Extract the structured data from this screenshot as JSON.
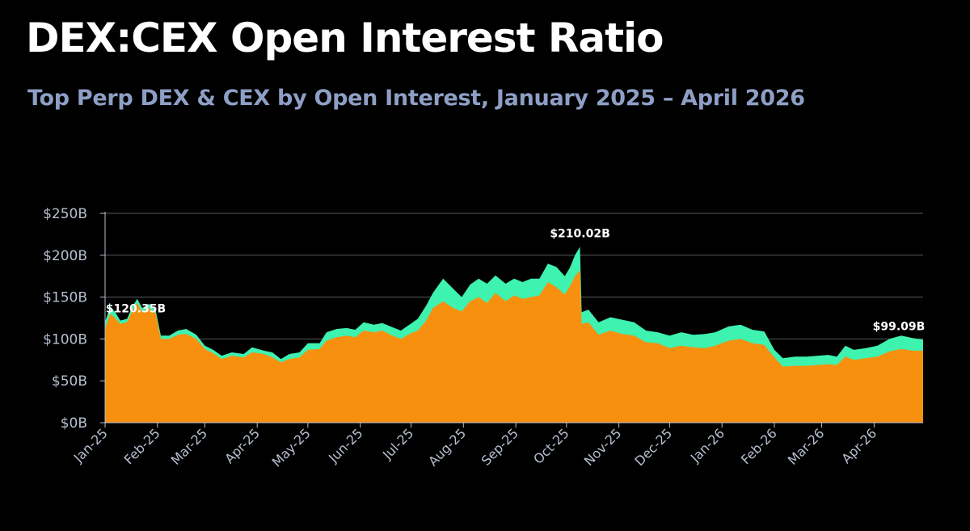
{
  "title": "DEX:CEX Open Interest Ratio",
  "subtitle": "Top Perp DEX & CEX by Open Interest, January 2025 – April 2026",
  "chart_data": {
    "type": "area",
    "stacked": true,
    "ylim": [
      0,
      250
    ],
    "y_ticks": [
      0,
      50,
      100,
      150,
      200,
      250
    ],
    "y_tick_labels": [
      "$0B",
      "$50B",
      "$100B",
      "$150B",
      "$200B",
      "$250B"
    ],
    "x_tick_labels": [
      "Jan-25",
      "Feb-25",
      "Mar-25",
      "Apr-25",
      "May-25",
      "Jun-25",
      "Jul-25",
      "Aug-25",
      "Sep-25",
      "Oct-25",
      "Nov-25",
      "Dec-25",
      "Jan-26",
      "Feb-26",
      "Mar-26",
      "Apr-26"
    ],
    "grid": "horizontal",
    "colors": {
      "bottom_series": "#f7900f",
      "top_series": "#3ef2b0",
      "gridline": "#55585e",
      "axis": "#b7bfd0"
    },
    "x_end": "2026-04-30",
    "series": [
      {
        "points": [
          [
            "2025-01-01",
            112
          ],
          [
            "2025-01-04",
            130
          ],
          [
            "2025-01-07",
            125
          ],
          [
            "2025-01-10",
            118
          ],
          [
            "2025-01-14",
            120
          ],
          [
            "2025-01-17",
            133
          ],
          [
            "2025-01-20",
            143
          ],
          [
            "2025-01-23",
            132
          ],
          [
            "2025-01-27",
            137
          ],
          [
            "2025-01-31",
            130
          ],
          [
            "2025-02-03",
            100
          ],
          [
            "2025-02-08",
            100
          ],
          [
            "2025-02-13",
            105
          ],
          [
            "2025-02-18",
            106
          ],
          [
            "2025-02-24",
            100
          ],
          [
            "2025-03-01",
            88
          ],
          [
            "2025-03-06",
            83
          ],
          [
            "2025-03-11",
            76
          ],
          [
            "2025-03-17",
            80
          ],
          [
            "2025-03-24",
            78
          ],
          [
            "2025-03-29",
            84
          ],
          [
            "2025-04-05",
            82
          ],
          [
            "2025-04-10",
            78
          ],
          [
            "2025-04-15",
            72
          ],
          [
            "2025-04-20",
            76
          ],
          [
            "2025-04-26",
            78
          ],
          [
            "2025-05-01",
            87
          ],
          [
            "2025-05-08",
            88
          ],
          [
            "2025-05-12",
            98
          ],
          [
            "2025-05-18",
            102
          ],
          [
            "2025-05-24",
            104
          ],
          [
            "2025-05-29",
            102
          ],
          [
            "2025-06-03",
            110
          ],
          [
            "2025-06-09",
            108
          ],
          [
            "2025-06-14",
            110
          ],
          [
            "2025-06-20",
            104
          ],
          [
            "2025-06-25",
            100
          ],
          [
            "2025-06-30",
            106
          ],
          [
            "2025-07-05",
            110
          ],
          [
            "2025-07-10",
            122
          ],
          [
            "2025-07-14",
            137
          ],
          [
            "2025-07-20",
            145
          ],
          [
            "2025-07-26",
            137
          ],
          [
            "2025-07-31",
            133
          ],
          [
            "2025-08-05",
            145
          ],
          [
            "2025-08-10",
            150
          ],
          [
            "2025-08-15",
            143
          ],
          [
            "2025-08-20",
            155
          ],
          [
            "2025-08-26",
            145
          ],
          [
            "2025-08-31",
            152
          ],
          [
            "2025-09-05",
            148
          ],
          [
            "2025-09-10",
            150
          ],
          [
            "2025-09-15",
            152
          ],
          [
            "2025-09-20",
            168
          ],
          [
            "2025-09-25",
            162
          ],
          [
            "2025-09-30",
            153
          ],
          [
            "2025-10-03",
            163
          ],
          [
            "2025-10-06",
            175
          ],
          [
            "2025-10-09",
            182
          ],
          [
            "2025-10-10",
            118
          ],
          [
            "2025-10-14",
            120
          ],
          [
            "2025-10-20",
            105
          ],
          [
            "2025-10-27",
            110
          ],
          [
            "2025-11-03",
            106
          ],
          [
            "2025-11-10",
            104
          ],
          [
            "2025-11-17",
            96
          ],
          [
            "2025-11-24",
            95
          ],
          [
            "2025-12-01",
            89
          ],
          [
            "2025-12-08",
            92
          ],
          [
            "2025-12-15",
            90
          ],
          [
            "2025-12-22",
            89
          ],
          [
            "2025-12-28",
            92
          ],
          [
            "2026-01-05",
            98
          ],
          [
            "2026-01-12",
            100
          ],
          [
            "2026-01-19",
            95
          ],
          [
            "2026-01-26",
            93
          ],
          [
            "2026-02-01",
            78
          ],
          [
            "2026-02-06",
            67
          ],
          [
            "2026-02-13",
            68
          ],
          [
            "2026-02-20",
            68
          ],
          [
            "2026-02-27",
            69
          ],
          [
            "2026-03-05",
            70
          ],
          [
            "2026-03-10",
            69
          ],
          [
            "2026-03-15",
            79
          ],
          [
            "2026-03-20",
            75
          ],
          [
            "2026-03-27",
            77
          ],
          [
            "2026-04-03",
            79
          ],
          [
            "2026-04-10",
            85
          ],
          [
            "2026-04-17",
            88
          ],
          [
            "2026-04-24",
            86
          ],
          [
            "2026-04-30",
            86
          ]
        ]
      },
      {
        "points": [
          [
            "2025-01-01",
            120.35
          ],
          [
            "2025-01-04",
            139
          ],
          [
            "2025-01-07",
            132
          ],
          [
            "2025-01-10",
            122
          ],
          [
            "2025-01-14",
            124
          ],
          [
            "2025-01-17",
            138
          ],
          [
            "2025-01-20",
            148
          ],
          [
            "2025-01-23",
            137
          ],
          [
            "2025-01-27",
            142
          ],
          [
            "2025-01-31",
            134
          ],
          [
            "2025-02-03",
            104
          ],
          [
            "2025-02-08",
            104
          ],
          [
            "2025-02-13",
            110
          ],
          [
            "2025-02-18",
            112
          ],
          [
            "2025-02-24",
            105
          ],
          [
            "2025-03-01",
            92
          ],
          [
            "2025-03-06",
            87
          ],
          [
            "2025-03-11",
            80
          ],
          [
            "2025-03-17",
            84
          ],
          [
            "2025-03-24",
            82
          ],
          [
            "2025-03-29",
            90
          ],
          [
            "2025-04-05",
            86
          ],
          [
            "2025-04-10",
            84
          ],
          [
            "2025-04-15",
            76
          ],
          [
            "2025-04-20",
            82
          ],
          [
            "2025-04-26",
            84
          ],
          [
            "2025-05-01",
            95
          ],
          [
            "2025-05-08",
            95
          ],
          [
            "2025-05-12",
            108
          ],
          [
            "2025-05-18",
            112
          ],
          [
            "2025-05-24",
            113
          ],
          [
            "2025-05-29",
            111
          ],
          [
            "2025-06-03",
            120
          ],
          [
            "2025-06-09",
            117
          ],
          [
            "2025-06-14",
            119
          ],
          [
            "2025-06-20",
            114
          ],
          [
            "2025-06-25",
            110
          ],
          [
            "2025-06-30",
            117
          ],
          [
            "2025-07-05",
            124
          ],
          [
            "2025-07-10",
            140
          ],
          [
            "2025-07-14",
            155
          ],
          [
            "2025-07-20",
            172
          ],
          [
            "2025-07-26",
            160
          ],
          [
            "2025-07-31",
            150
          ],
          [
            "2025-08-05",
            165
          ],
          [
            "2025-08-10",
            172
          ],
          [
            "2025-08-15",
            166
          ],
          [
            "2025-08-20",
            176
          ],
          [
            "2025-08-26",
            166
          ],
          [
            "2025-08-31",
            172
          ],
          [
            "2025-09-05",
            168
          ],
          [
            "2025-09-10",
            172
          ],
          [
            "2025-09-15",
            172
          ],
          [
            "2025-09-20",
            190
          ],
          [
            "2025-09-25",
            186
          ],
          [
            "2025-09-30",
            175
          ],
          [
            "2025-10-03",
            185
          ],
          [
            "2025-10-06",
            200
          ],
          [
            "2025-10-09",
            210.02
          ],
          [
            "2025-10-10",
            132
          ],
          [
            "2025-10-14",
            135
          ],
          [
            "2025-10-20",
            120
          ],
          [
            "2025-10-27",
            126
          ],
          [
            "2025-11-03",
            123
          ],
          [
            "2025-11-10",
            120
          ],
          [
            "2025-11-17",
            110
          ],
          [
            "2025-11-24",
            108
          ],
          [
            "2025-12-01",
            104
          ],
          [
            "2025-12-08",
            108
          ],
          [
            "2025-12-15",
            105
          ],
          [
            "2025-12-22",
            106
          ],
          [
            "2025-12-28",
            108
          ],
          [
            "2026-01-05",
            115
          ],
          [
            "2026-01-12",
            117
          ],
          [
            "2026-01-19",
            111
          ],
          [
            "2026-01-26",
            109
          ],
          [
            "2026-02-01",
            87
          ],
          [
            "2026-02-06",
            77
          ],
          [
            "2026-02-13",
            79
          ],
          [
            "2026-02-20",
            79
          ],
          [
            "2026-02-27",
            80
          ],
          [
            "2026-03-05",
            81
          ],
          [
            "2026-03-10",
            79
          ],
          [
            "2026-03-15",
            92
          ],
          [
            "2026-03-20",
            87
          ],
          [
            "2026-03-27",
            89
          ],
          [
            "2026-04-03",
            92
          ],
          [
            "2026-04-10",
            100
          ],
          [
            "2026-04-17",
            104
          ],
          [
            "2026-04-24",
            101
          ],
          [
            "2026-04-30",
            99.09
          ]
        ]
      }
    ],
    "annotations": [
      {
        "label": "$120.35B",
        "x": "2025-01-01",
        "y": 120.35
      },
      {
        "label": "$210.02B",
        "x": "2025-10-09",
        "y": 210.02
      },
      {
        "label": "$99.09B",
        "x": "2026-04-30",
        "y": 99.09
      }
    ]
  }
}
